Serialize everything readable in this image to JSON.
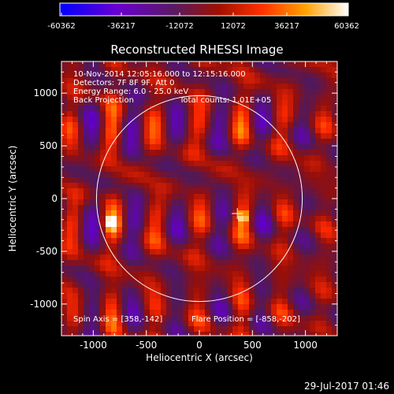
{
  "chart_data": {
    "type": "heatmap",
    "title": "Reconstructed RHESSI Image",
    "xlabel": "Heliocentric X (arcsec)",
    "ylabel": "Heliocentric Y (arcsec)",
    "xlim": [
      -1300,
      1300
    ],
    "ylim": [
      -1300,
      1300
    ],
    "xticks": [
      -1000,
      -500,
      0,
      500,
      1000
    ],
    "yticks": [
      -1000,
      -500,
      0,
      500,
      1000
    ],
    "colorbar": {
      "range": [
        -60362,
        60362
      ],
      "tick_labels": [
        "-60362",
        "-36217",
        "-12072",
        "12072",
        "36217",
        "60362"
      ],
      "colors": [
        "#0000ff",
        "#7a00c0",
        "#4a1a45",
        "#b01000",
        "#ff3000",
        "#ffa000",
        "#ffff80",
        "#ffffff"
      ]
    },
    "annotations": [
      "10-Nov-2014 12:05:16.000 to 12:15:16.000",
      "Detectors: 7F 8F 9F, Att 0",
      "Energy Range: 6.0 - 25.0 keV",
      "Back Projection",
      "Total counts: 1.01E+05"
    ],
    "footer": {
      "spin_axis": "Spin Axis = [358,-142]",
      "flare_position": "Flare Position = [-858,-202]"
    },
    "solar_limb": {
      "center": [
        0,
        0
      ],
      "radius_arcsec": 970
    },
    "marker": {
      "x": 358,
      "y": -142
    },
    "bright_sources": [
      {
        "x": -858,
        "y": -202,
        "intensity": 60362
      },
      {
        "x": 390,
        "y": -150,
        "intensity": 50000
      }
    ]
  },
  "timestamp": "29-Jul-2017 01:46"
}
